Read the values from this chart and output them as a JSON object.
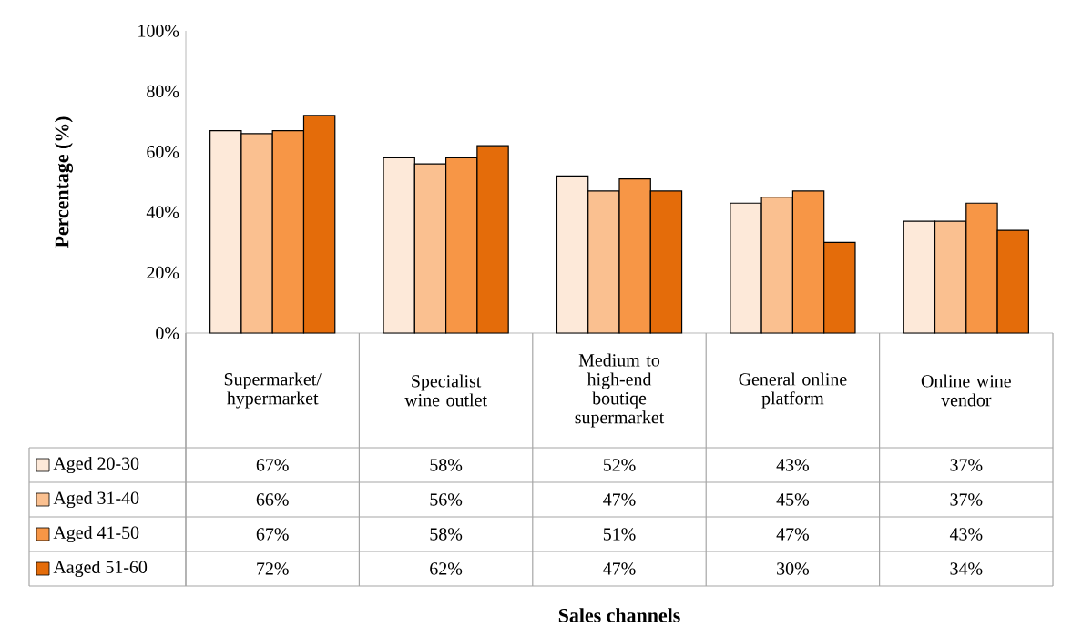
{
  "chart_data": {
    "type": "bar",
    "annotations": [
      "Sales channels"
    ],
    "ylabel": "Percentage (%)",
    "categories": [
      "Supermarket/ hypermarket",
      "Specialist wine outlet",
      "Medium to high-end boutiqe supermarket",
      "General online platform",
      "Online wine vendor"
    ],
    "series": [
      {
        "name": "Aged 20-30",
        "color": "#fde9d9",
        "values": [
          67,
          58,
          52,
          43,
          37
        ],
        "value_labels": [
          "67%",
          "58%",
          "52%",
          "43%",
          "37%"
        ]
      },
      {
        "name": "Aged 31-40",
        "color": "#fac090",
        "values": [
          66,
          56,
          47,
          45,
          37
        ],
        "value_labels": [
          "66%",
          "56%",
          "47%",
          "45%",
          "37%"
        ]
      },
      {
        "name": "Aged 41-50",
        "color": "#f79646",
        "values": [
          67,
          58,
          51,
          47,
          43
        ],
        "value_labels": [
          "67%",
          "58%",
          "51%",
          "47%",
          "43%"
        ]
      },
      {
        "name": "Aaged 51-60",
        "color": "#e46c0a",
        "values": [
          72,
          62,
          47,
          30,
          34
        ],
        "value_labels": [
          "72%",
          "62%",
          "47%",
          "30%",
          "34%"
        ]
      }
    ],
    "ylim": [
      0,
      100
    ],
    "yticks": [
      {
        "value": 0,
        "label": "0%"
      },
      {
        "value": 20,
        "label": "20%"
      },
      {
        "value": 40,
        "label": "40%"
      },
      {
        "value": 60,
        "label": "60%"
      },
      {
        "value": 80,
        "label": "80%"
      },
      {
        "value": 100,
        "label": "100%"
      }
    ],
    "grid": false,
    "legend": "bottom left"
  }
}
